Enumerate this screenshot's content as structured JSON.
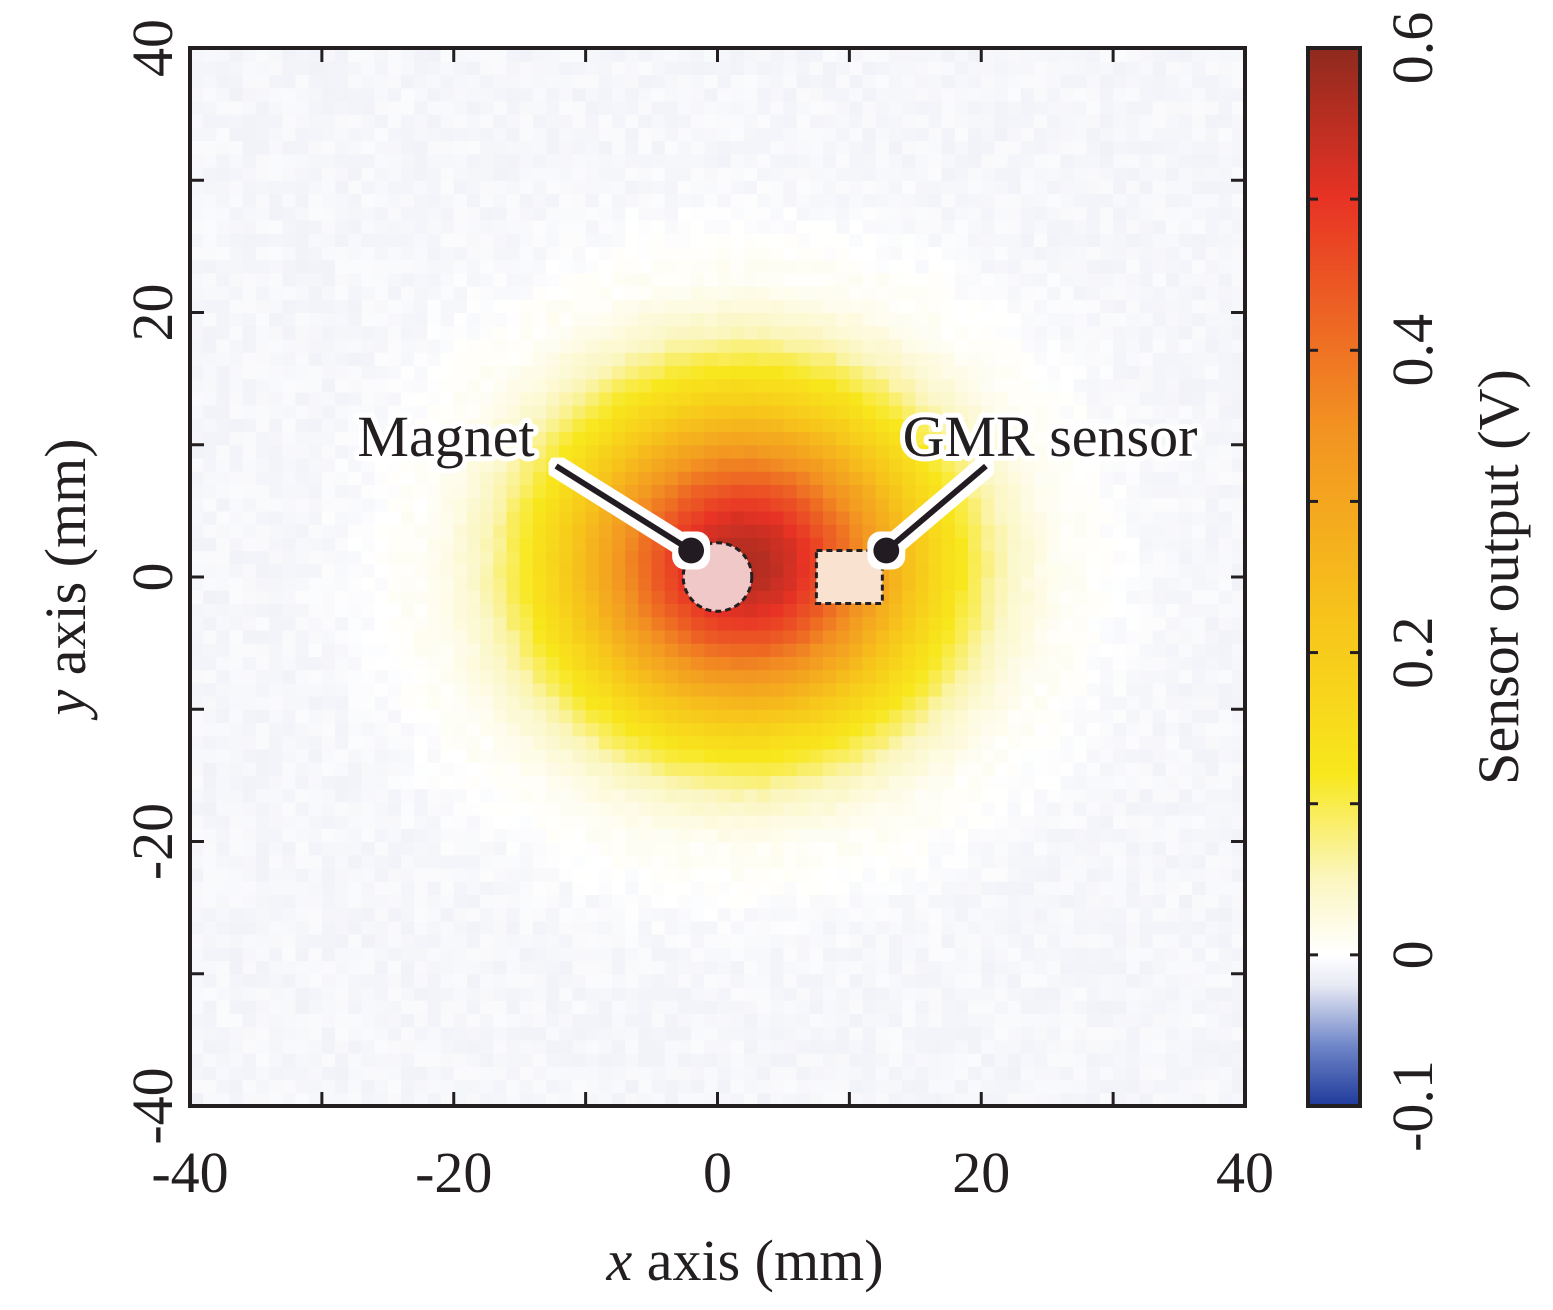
{
  "chart_data": {
    "type": "heatmap",
    "title": "",
    "xlabel": {
      "var": "x",
      "rest": " axis (mm)"
    },
    "ylabel": {
      "var": "y",
      "rest": " axis (mm)"
    },
    "xlim": [
      -40,
      40
    ],
    "ylim": [
      -40,
      40
    ],
    "xticks": [
      "-40",
      "-20",
      "0",
      "20",
      "40"
    ],
    "yticks": [
      "-40",
      "-20",
      "0",
      "20",
      "40"
    ],
    "xtick_values": [
      -40,
      -20,
      0,
      20,
      40
    ],
    "ytick_values": [
      -40,
      -20,
      0,
      20,
      40
    ],
    "minor_tick_step": 10,
    "grid_step_mm": 1,
    "field_model": {
      "peak_center_mm": [
        2,
        1
      ],
      "peak_value_v": 0.57,
      "sigma_x_mm": 9.5,
      "sigma_y_mm": 8.5,
      "baseline_v": -0.008
    },
    "colorbar": {
      "label": "Sensor output (V)",
      "range": [
        -0.1,
        0.6
      ],
      "ticks": [
        "-0.1",
        "0",
        "0.2",
        "0.4",
        "0.6"
      ],
      "tick_values": [
        -0.1,
        0,
        0.2,
        0.4,
        0.6
      ],
      "minor_tick_step": 0.1,
      "colormap": [
        {
          "v": -0.1,
          "color": "#1f3a9b"
        },
        {
          "v": -0.06,
          "color": "#6f86c8"
        },
        {
          "v": -0.02,
          "color": "#e8eaf4"
        },
        {
          "v": 0.0,
          "color": "#ffffff"
        },
        {
          "v": 0.05,
          "color": "#fbf6c0"
        },
        {
          "v": 0.12,
          "color": "#f8e71c"
        },
        {
          "v": 0.22,
          "color": "#f7c51b"
        },
        {
          "v": 0.35,
          "color": "#f29222"
        },
        {
          "v": 0.5,
          "color": "#e83325"
        },
        {
          "v": 0.6,
          "color": "#8e2a1e"
        }
      ]
    },
    "annotations": [
      {
        "label": "Magnet",
        "shape": "circle",
        "center_mm": [
          0,
          0
        ],
        "radius_mm": 2.6,
        "fill": "#f1c8c8",
        "dot_mm": [
          -2,
          2
        ]
      },
      {
        "label": "GMR sensor",
        "shape": "rectangle",
        "x_range_mm": [
          7.5,
          12.5
        ],
        "y_range_mm": [
          -2,
          2
        ],
        "fill": "#f9e2cf",
        "dot_mm": [
          12.8,
          2
        ]
      }
    ]
  }
}
